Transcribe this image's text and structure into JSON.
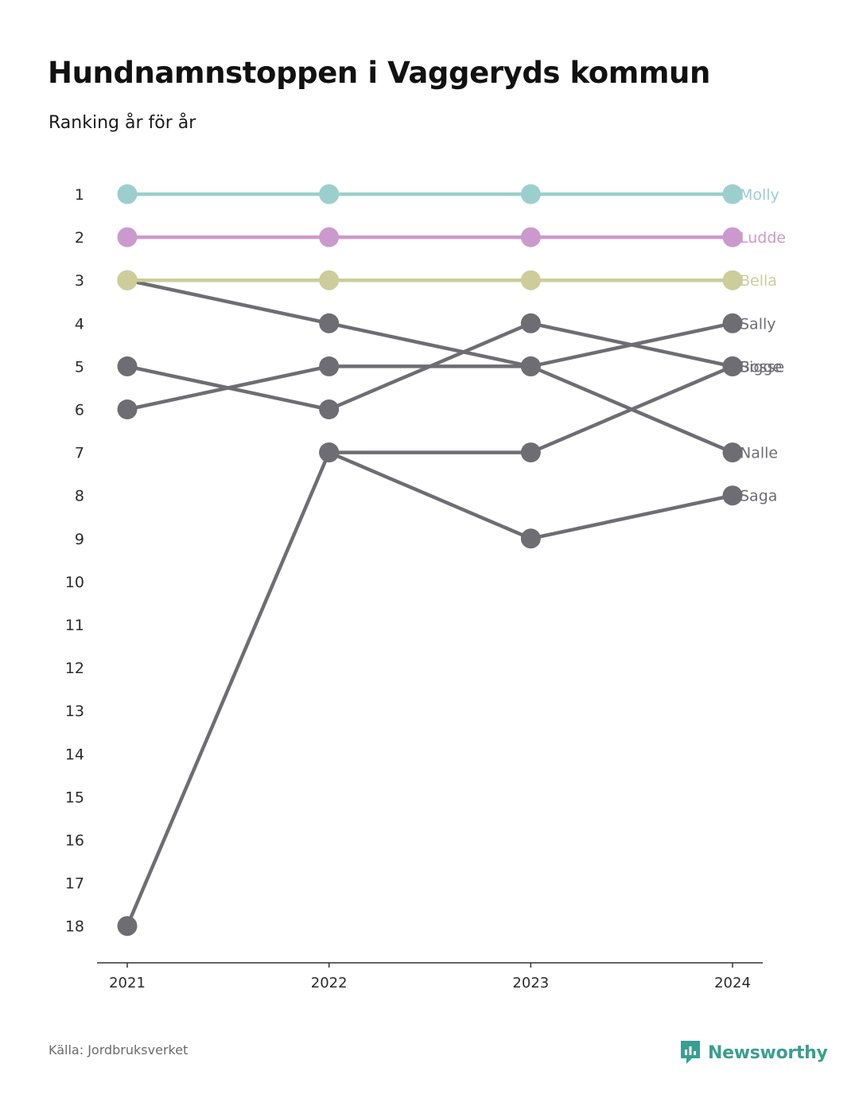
{
  "title": "Hundnamnstoppen i Vaggeryds kommun",
  "subtitle": "Ranking år för år",
  "source": "Källa: Jordbruksverket",
  "brand": {
    "name": "Newsworthy",
    "color": "#3a9e92",
    "icon": "newsworthy-logo-icon"
  },
  "chart_data": {
    "type": "line",
    "subtype": "bump",
    "x": [
      "2021",
      "2022",
      "2023",
      "2024"
    ],
    "y_ticks": [
      "1",
      "2",
      "3",
      "4",
      "5",
      "6",
      "7",
      "8",
      "9",
      "10",
      "11",
      "12",
      "13",
      "14",
      "15",
      "16",
      "17",
      "18"
    ],
    "ylim": [
      1,
      18
    ],
    "y_reversed": true,
    "grid": false,
    "default_color": "#6e6d73",
    "series": [
      {
        "name": "Molly",
        "values": [
          1,
          1,
          1,
          1
        ],
        "color": "#9bcfcd"
      },
      {
        "name": "Ludde",
        "values": [
          2,
          2,
          2,
          2
        ],
        "color": "#cc99cf"
      },
      {
        "name": "Bella",
        "values": [
          3,
          3,
          3,
          3
        ],
        "color": "#cccd9a"
      },
      {
        "name": "Sally",
        "values": [
          6,
          5,
          5,
          4
        ],
        "color": "#6e6d73"
      },
      {
        "name": "Bosse",
        "values": [
          5,
          6,
          4,
          5
        ],
        "color": "#6e6d73"
      },
      {
        "name": "Sigge",
        "values": [
          18,
          7,
          7,
          5
        ],
        "color": "#6e6d73"
      },
      {
        "name": "Nalle",
        "values": [
          3,
          4,
          5,
          7
        ],
        "color": "#6e6d73"
      },
      {
        "name": "Saga",
        "values": [
          null,
          7,
          9,
          8
        ],
        "color": "#6e6d73"
      }
    ]
  }
}
